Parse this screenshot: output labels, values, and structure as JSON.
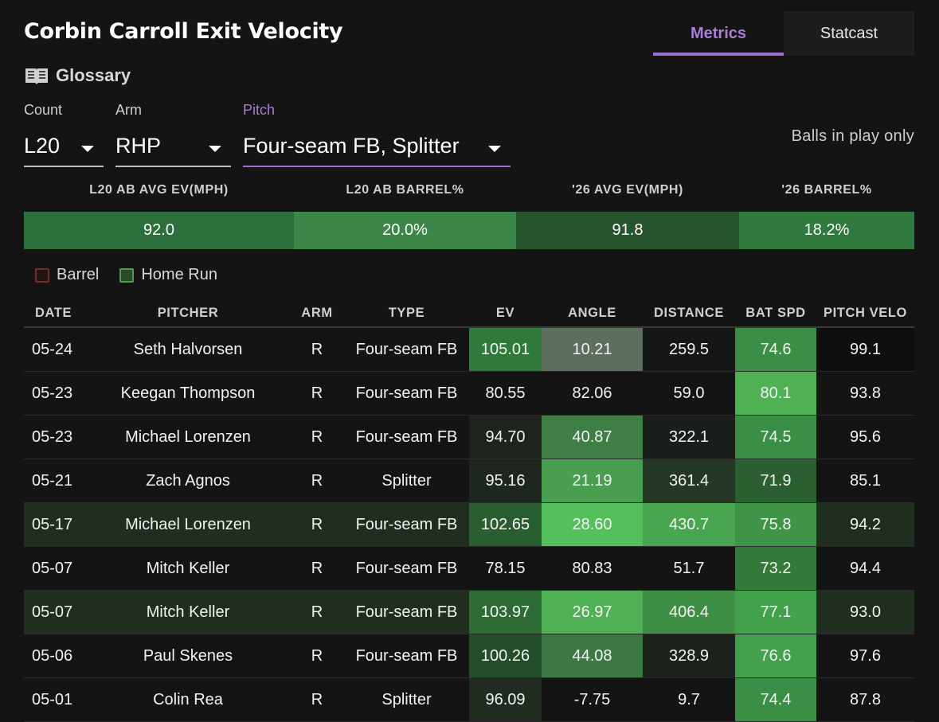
{
  "title": "Corbin Carroll Exit Velocity",
  "tabs": [
    {
      "label": "Metrics",
      "active": true
    },
    {
      "label": "Statcast",
      "active": false
    }
  ],
  "glossary_label": "Glossary",
  "filters": {
    "count": {
      "label": "Count",
      "value": "L20"
    },
    "arm": {
      "label": "Arm",
      "value": "RHP"
    },
    "pitch": {
      "label": "Pitch",
      "value": "Four-seam FB, Splitter"
    }
  },
  "balls_in_play_label": "Balls in play only",
  "summary": {
    "headers": [
      "L20 AB AVG EV(MPH)",
      "L20 AB BARREL%",
      "'26 AVG EV(MPH)",
      "'26 BARREL%"
    ],
    "values": [
      "92.0",
      "20.0%",
      "91.8",
      "18.2%"
    ],
    "colors": [
      "#2d6f3a",
      "#3a8747",
      "#25542d",
      "#2f7a3c"
    ]
  },
  "legend": [
    {
      "label": "Barrel",
      "border": "#7a2a2a",
      "fill": "#1e1414"
    },
    {
      "label": "Home Run",
      "border": "#4f9a4f",
      "fill": "#2a4a2a"
    }
  ],
  "table": {
    "headers": [
      "DATE",
      "PITCHER",
      "ARM",
      "TYPE",
      "EV",
      "ANGLE",
      "DISTANCE",
      "BAT SPD",
      "PITCH VELO"
    ],
    "rows": [
      {
        "date": "05-24",
        "pitcher": "Seth Halvorsen",
        "arm": "R",
        "type": "Four-seam FB",
        "ev": "105.01",
        "angle": "10.21",
        "distance": "259.5",
        "bat_spd": "74.6",
        "pitch_velo": "99.1",
        "home_run": false,
        "colors": {
          "ev": "#2e7a3a",
          "angle": "#5c6e5e",
          "distance": "#161616",
          "bat_spd": "#3b8e45",
          "pitch_velo": "#0f0f0f"
        }
      },
      {
        "date": "05-23",
        "pitcher": "Keegan Thompson",
        "arm": "R",
        "type": "Four-seam FB",
        "ev": "80.55",
        "angle": "82.06",
        "distance": "59.0",
        "bat_spd": "80.1",
        "pitch_velo": "93.8",
        "home_run": false,
        "colors": {
          "ev": "#141414",
          "angle": "#141414",
          "distance": "#141414",
          "bat_spd": "#4fb054",
          "pitch_velo": "#141414"
        }
      },
      {
        "date": "05-23",
        "pitcher": "Michael Lorenzen",
        "arm": "R",
        "type": "Four-seam FB",
        "ev": "94.70",
        "angle": "40.87",
        "distance": "322.1",
        "bat_spd": "74.5",
        "pitch_velo": "95.6",
        "home_run": false,
        "colors": {
          "ev": "#1d241d",
          "angle": "#3d7f45",
          "distance": "#1b1f1b",
          "bat_spd": "#3b8e45",
          "pitch_velo": "#141414"
        }
      },
      {
        "date": "05-21",
        "pitcher": "Zach Agnos",
        "arm": "R",
        "type": "Splitter",
        "ev": "95.16",
        "angle": "21.19",
        "distance": "361.4",
        "bat_spd": "71.9",
        "pitch_velo": "85.1",
        "home_run": false,
        "colors": {
          "ev": "#1e271e",
          "angle": "#4a9e50",
          "distance": "#253825",
          "bat_spd": "#2b5f31",
          "pitch_velo": "#141414"
        }
      },
      {
        "date": "05-17",
        "pitcher": "Michael Lorenzen",
        "arm": "R",
        "type": "Four-seam FB",
        "ev": "102.65",
        "angle": "28.60",
        "distance": "430.7",
        "bat_spd": "75.8",
        "pitch_velo": "94.2",
        "home_run": true,
        "colors": {
          "ev": "#295f30",
          "angle": "#55c05b",
          "distance": "#4aa550",
          "bat_spd": "#3f9447",
          "pitch_velo": "#1f2e1f"
        }
      },
      {
        "date": "05-07",
        "pitcher": "Mitch Keller",
        "arm": "R",
        "type": "Four-seam FB",
        "ev": "78.15",
        "angle": "80.83",
        "distance": "51.7",
        "bat_spd": "73.2",
        "pitch_velo": "94.4",
        "home_run": false,
        "colors": {
          "ev": "#141414",
          "angle": "#141414",
          "distance": "#141414",
          "bat_spd": "#337a3a",
          "pitch_velo": "#141414"
        }
      },
      {
        "date": "05-07",
        "pitcher": "Mitch Keller",
        "arm": "R",
        "type": "Four-seam FB",
        "ev": "103.97",
        "angle": "26.97",
        "distance": "406.4",
        "bat_spd": "77.1",
        "pitch_velo": "93.0",
        "home_run": true,
        "colors": {
          "ev": "#2c6b34",
          "angle": "#50b056",
          "distance": "#3f8e46",
          "bat_spd": "#44a14b",
          "pitch_velo": "#1f2e1f"
        }
      },
      {
        "date": "05-06",
        "pitcher": "Paul Skenes",
        "arm": "R",
        "type": "Four-seam FB",
        "ev": "100.26",
        "angle": "44.08",
        "distance": "328.9",
        "bat_spd": "76.6",
        "pitch_velo": "97.6",
        "home_run": false,
        "colors": {
          "ev": "#244d29",
          "angle": "#3b7843",
          "distance": "#1c221c",
          "bat_spd": "#44a14b",
          "pitch_velo": "#141414"
        }
      },
      {
        "date": "05-01",
        "pitcher": "Colin Rea",
        "arm": "R",
        "type": "Splitter",
        "ev": "96.09",
        "angle": "-7.75",
        "distance": "9.7",
        "bat_spd": "74.4",
        "pitch_velo": "87.8",
        "home_run": false,
        "colors": {
          "ev": "#1f2c1f",
          "angle": "#141414",
          "distance": "#141414",
          "bat_spd": "#3b8e45",
          "pitch_velo": "#141414"
        }
      }
    ]
  }
}
